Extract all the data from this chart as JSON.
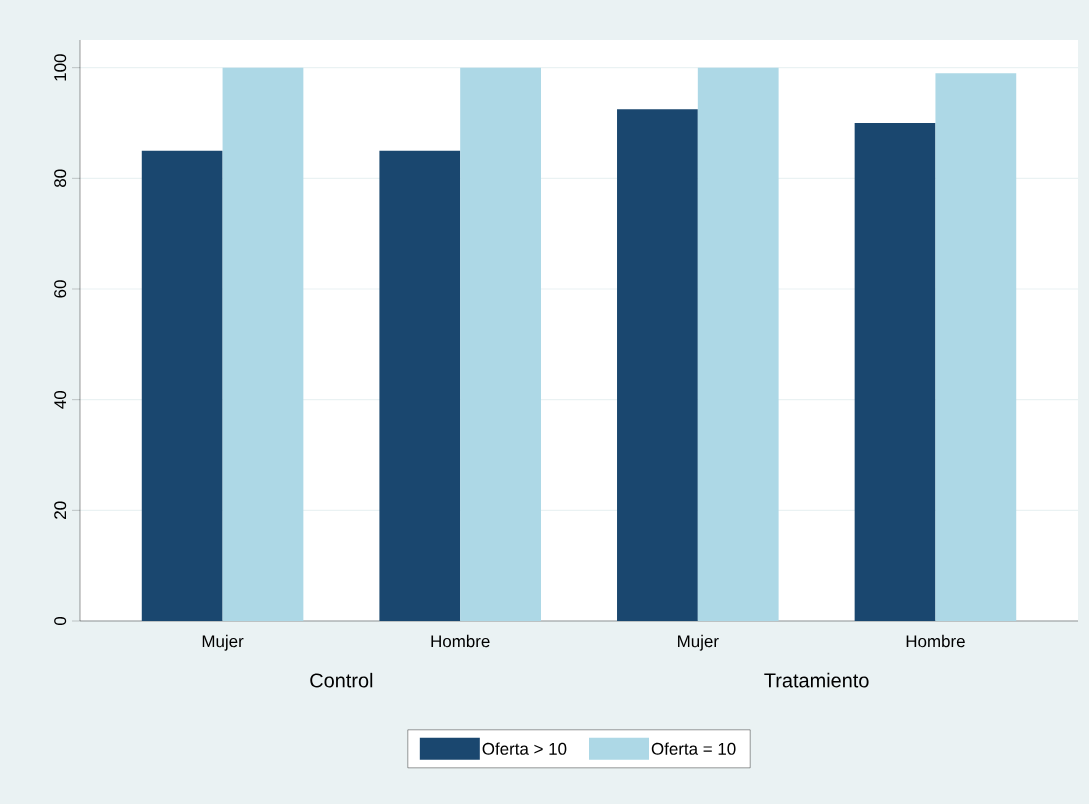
{
  "chart_data": {
    "type": "bar",
    "categories": [
      "Mujer",
      "Hombre",
      "Mujer",
      "Hombre"
    ],
    "series": [
      {
        "name": "Oferta > 10",
        "color": "#1a476f",
        "values": [
          85,
          85,
          92.5,
          90
        ]
      },
      {
        "name": "Oferta = 10",
        "color": "#add8e6",
        "values": [
          100,
          100,
          100,
          99
        ]
      }
    ],
    "ylim": [
      0,
      105
    ],
    "yticks": [
      0,
      20,
      40,
      60,
      80,
      100
    ],
    "grid": "y",
    "legend": "bottom",
    "annotations": [
      "Control",
      "Tratamiento"
    ]
  }
}
